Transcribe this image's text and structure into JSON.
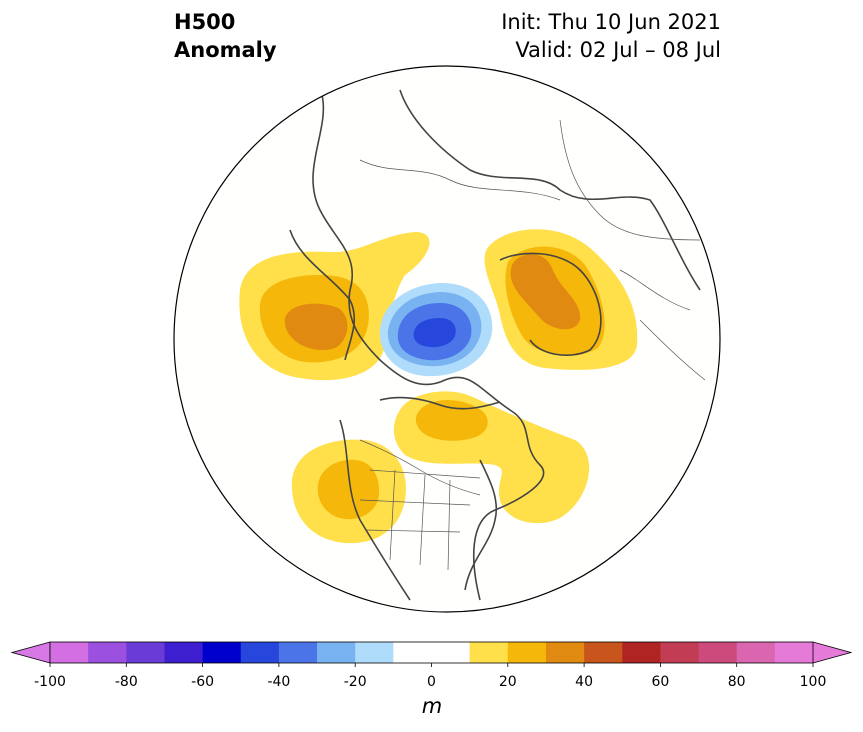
{
  "title": {
    "field_line1": "H500",
    "field_line2": "Anomaly",
    "init_line": "Init: Thu 10 Jun 2021",
    "valid_line": "Valid: 02 Jul – 08 Jul"
  },
  "map": {
    "projection": "north-polar-stereographic",
    "features": [
      "coastlines",
      "country-borders",
      "us-state-borders"
    ],
    "anomaly_centers": [
      {
        "region": "northeast-pacific-alaska",
        "sign": "positive",
        "peak_m": 40
      },
      {
        "region": "arctic-ocean-north-pole",
        "sign": "negative",
        "peak_m": -60
      },
      {
        "region": "northern-russia-siberia",
        "sign": "positive",
        "peak_m": 40
      },
      {
        "region": "greenland-baffin-arctic-canada",
        "sign": "positive",
        "peak_m": 30
      },
      {
        "region": "western-north-america",
        "sign": "positive",
        "peak_m": 30
      },
      {
        "region": "northwest-atlantic-eastern-canada",
        "sign": "positive",
        "peak_m": 20
      }
    ]
  },
  "colorbar": {
    "unit": "m",
    "ticks": [
      "-100",
      "-80",
      "-60",
      "-40",
      "-20",
      "0",
      "20",
      "40",
      "60",
      "80",
      "100"
    ],
    "tick_values": [
      -100,
      -80,
      -60,
      -40,
      -20,
      0,
      20,
      40,
      60,
      80,
      100
    ],
    "bounds": [
      -100,
      100
    ],
    "step": 10,
    "colors": [
      "#d36fe3",
      "#9b50e0",
      "#6a3bd6",
      "#3d1fd0",
      "#0000cc",
      "#2747dc",
      "#4a74e8",
      "#79b2f0",
      "#b0dcfc",
      "#ffffff",
      "#ffffff",
      "#ffe04a",
      "#f5b70a",
      "#e08a12",
      "#c8561c",
      "#b02424",
      "#c23c54",
      "#cc4a7c",
      "#d966ae",
      "#e57ad8"
    ],
    "extend_min_color": "#d877e6",
    "extend_max_color": "#e57ad8"
  }
}
